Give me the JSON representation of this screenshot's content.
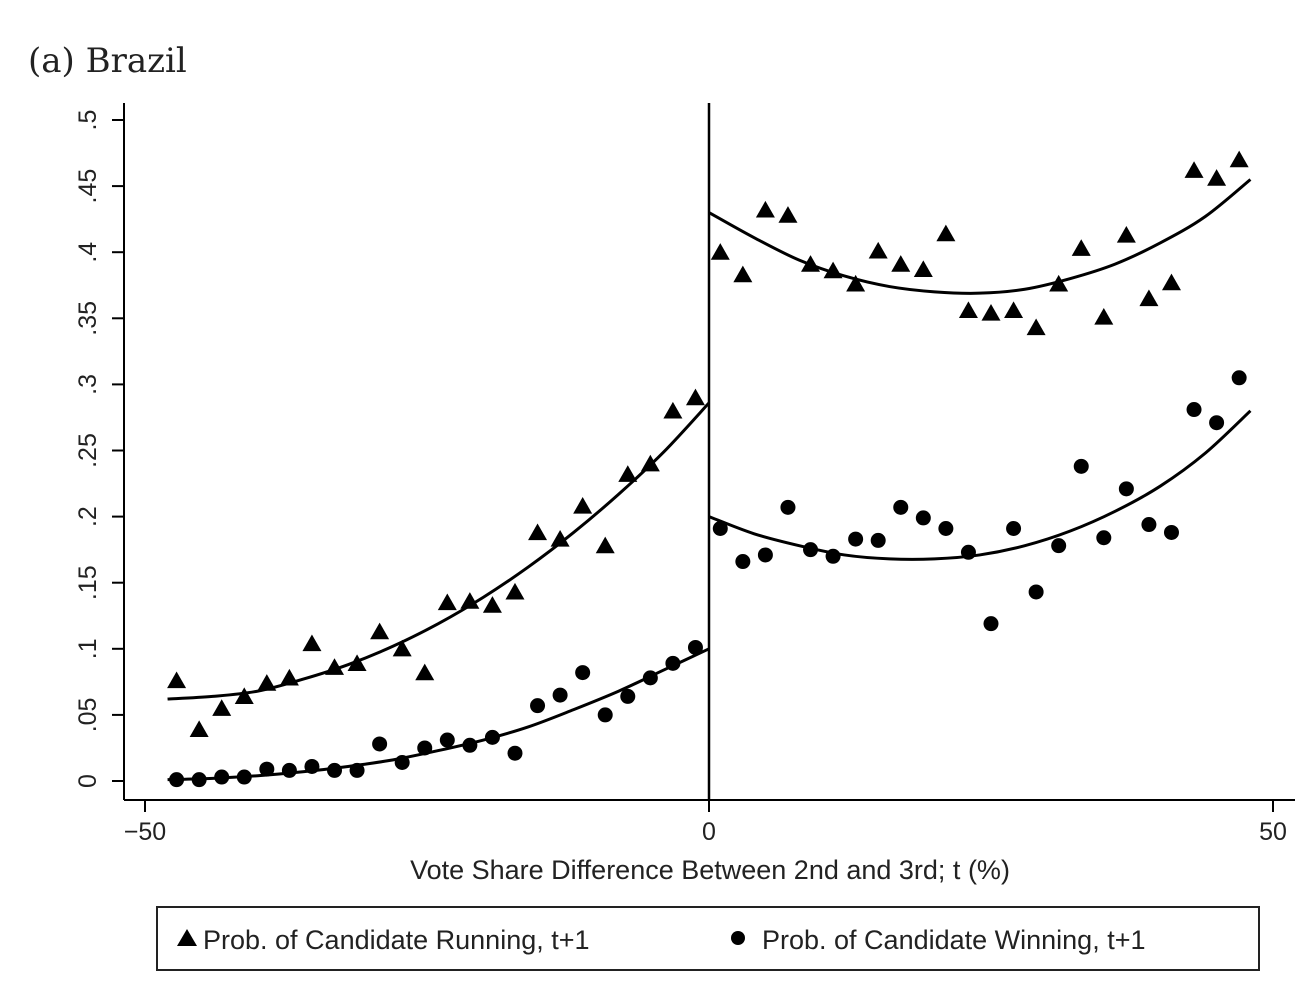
{
  "chart_data": {
    "type": "scatter",
    "title": "(a) Brazil",
    "xlabel": "Vote Share Difference Between 2nd and 3rd; t (%)",
    "ylabel": "",
    "xlim": [
      -52,
      52
    ],
    "ylim": [
      -0.015,
      0.5
    ],
    "x_ticks": [
      -50,
      0,
      50
    ],
    "x_tick_labels": [
      "−50",
      "0",
      "50"
    ],
    "y_ticks": [
      0,
      0.05,
      0.1,
      0.15,
      0.2,
      0.25,
      0.3,
      0.35,
      0.4,
      0.45,
      0.5
    ],
    "y_tick_labels": [
      "0",
      ".05",
      ".1",
      ".15",
      ".2",
      ".25",
      ".3",
      ".35",
      ".4",
      ".45",
      ".5"
    ],
    "cutoff_x": 0,
    "grid": false,
    "legend_position": "bottom",
    "series": [
      {
        "name": "Prob. of Candidate Running, t+1",
        "marker": "triangle",
        "color": "#000000",
        "points": [
          [
            -47.2,
            0.076
          ],
          [
            -45.2,
            0.039
          ],
          [
            -43.2,
            0.055
          ],
          [
            -41.2,
            0.064
          ],
          [
            -39.2,
            0.074
          ],
          [
            -37.2,
            0.078
          ],
          [
            -35.2,
            0.104
          ],
          [
            -33.2,
            0.086
          ],
          [
            -31.2,
            0.089
          ],
          [
            -29.2,
            0.113
          ],
          [
            -27.2,
            0.1
          ],
          [
            -25.2,
            0.082
          ],
          [
            -23.2,
            0.135
          ],
          [
            -21.2,
            0.136
          ],
          [
            -19.2,
            0.133
          ],
          [
            -17.2,
            0.143
          ],
          [
            -15.2,
            0.188
          ],
          [
            -13.2,
            0.183
          ],
          [
            -11.2,
            0.208
          ],
          [
            -9.2,
            0.178
          ],
          [
            -7.2,
            0.232
          ],
          [
            -5.2,
            0.24
          ],
          [
            -3.2,
            0.28
          ],
          [
            -1.2,
            0.29
          ],
          [
            1.0,
            0.4
          ],
          [
            3.0,
            0.383
          ],
          [
            5.0,
            0.432
          ],
          [
            7.0,
            0.428
          ],
          [
            9.0,
            0.391
          ],
          [
            11.0,
            0.386
          ],
          [
            13.0,
            0.376
          ],
          [
            15.0,
            0.401
          ],
          [
            17.0,
            0.391
          ],
          [
            19.0,
            0.387
          ],
          [
            21.0,
            0.414
          ],
          [
            23.0,
            0.356
          ],
          [
            25.0,
            0.354
          ],
          [
            27.0,
            0.356
          ],
          [
            29.0,
            0.343
          ],
          [
            31.0,
            0.376
          ],
          [
            33.0,
            0.403
          ],
          [
            35.0,
            0.351
          ],
          [
            37.0,
            0.413
          ],
          [
            39.0,
            0.365
          ],
          [
            41.0,
            0.377
          ],
          [
            43.0,
            0.462
          ],
          [
            45.0,
            0.456
          ],
          [
            47.0,
            0.47
          ]
        ]
      },
      {
        "name": "Prob. of Candidate Winning, t+1",
        "marker": "circle",
        "color": "#000000",
        "points": [
          [
            -47.2,
            0.001
          ],
          [
            -45.2,
            0.001
          ],
          [
            -43.2,
            0.003
          ],
          [
            -41.2,
            0.003
          ],
          [
            -39.2,
            0.009
          ],
          [
            -37.2,
            0.008
          ],
          [
            -35.2,
            0.011
          ],
          [
            -33.2,
            0.008
          ],
          [
            -31.2,
            0.008
          ],
          [
            -29.2,
            0.028
          ],
          [
            -27.2,
            0.014
          ],
          [
            -25.2,
            0.025
          ],
          [
            -23.2,
            0.031
          ],
          [
            -21.2,
            0.027
          ],
          [
            -19.2,
            0.033
          ],
          [
            -17.2,
            0.021
          ],
          [
            -15.2,
            0.057
          ],
          [
            -13.2,
            0.065
          ],
          [
            -11.2,
            0.082
          ],
          [
            -9.2,
            0.05
          ],
          [
            -7.2,
            0.064
          ],
          [
            -5.2,
            0.078
          ],
          [
            -3.2,
            0.089
          ],
          [
            -1.2,
            0.101
          ],
          [
            1.0,
            0.191
          ],
          [
            3.0,
            0.166
          ],
          [
            5.0,
            0.171
          ],
          [
            7.0,
            0.207
          ],
          [
            9.0,
            0.175
          ],
          [
            11.0,
            0.17
          ],
          [
            13.0,
            0.183
          ],
          [
            15.0,
            0.182
          ],
          [
            17.0,
            0.207
          ],
          [
            19.0,
            0.199
          ],
          [
            21.0,
            0.191
          ],
          [
            23.0,
            0.173
          ],
          [
            25.0,
            0.119
          ],
          [
            27.0,
            0.191
          ],
          [
            29.0,
            0.143
          ],
          [
            31.0,
            0.178
          ],
          [
            33.0,
            0.238
          ],
          [
            35.0,
            0.184
          ],
          [
            37.0,
            0.221
          ],
          [
            39.0,
            0.194
          ],
          [
            41.0,
            0.188
          ],
          [
            43.0,
            0.281
          ],
          [
            45.0,
            0.271
          ],
          [
            47.0,
            0.305
          ]
        ]
      }
    ],
    "fit_lines": [
      {
        "series": "Prob. of Candidate Running, t+1",
        "side": "left",
        "x": [
          -48,
          -44,
          -40,
          -36,
          -32,
          -28,
          -24,
          -20,
          -16,
          -12,
          -8,
          -4,
          0
        ],
        "y": [
          0.062,
          0.064,
          0.068,
          0.077,
          0.088,
          0.102,
          0.119,
          0.139,
          0.162,
          0.188,
          0.217,
          0.249,
          0.286
        ]
      },
      {
        "series": "Prob. of Candidate Running, t+1",
        "side": "right",
        "x": [
          0,
          4,
          8,
          12,
          16,
          20,
          24,
          28,
          32,
          36,
          40,
          44,
          48
        ],
        "y": [
          0.43,
          0.411,
          0.394,
          0.382,
          0.374,
          0.37,
          0.369,
          0.372,
          0.38,
          0.391,
          0.407,
          0.427,
          0.455
        ]
      },
      {
        "series": "Prob. of Candidate Winning, t+1",
        "side": "left",
        "x": [
          -48,
          -44,
          -40,
          -36,
          -32,
          -28,
          -24,
          -20,
          -16,
          -12,
          -8,
          -4,
          0
        ],
        "y": [
          0.001,
          0.002,
          0.004,
          0.007,
          0.011,
          0.016,
          0.023,
          0.031,
          0.041,
          0.054,
          0.068,
          0.084,
          0.1
        ]
      },
      {
        "series": "Prob. of Candidate Winning, t+1",
        "side": "right",
        "x": [
          0,
          4,
          8,
          12,
          16,
          20,
          24,
          28,
          32,
          36,
          40,
          44,
          48
        ],
        "y": [
          0.2,
          0.187,
          0.178,
          0.171,
          0.168,
          0.168,
          0.171,
          0.178,
          0.189,
          0.204,
          0.223,
          0.248,
          0.28
        ]
      }
    ]
  }
}
